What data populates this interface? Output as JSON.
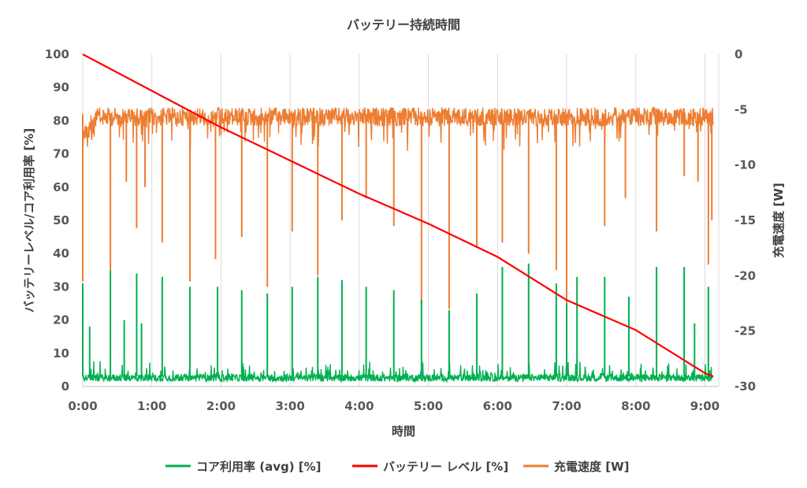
{
  "chart_data": {
    "type": "line",
    "title": "バッテリー持続時間",
    "xlabel": "時間",
    "ylabel_left": "バッテリーレベル/コア利用率 [%]",
    "ylabel_right": "充電速度 [W]",
    "x_ticks": [
      "0:00",
      "1:00",
      "2:00",
      "3:00",
      "4:00",
      "5:00",
      "6:00",
      "7:00",
      "8:00",
      "9:00"
    ],
    "x_range_hours": [
      0,
      9.2
    ],
    "y_left_range": [
      0,
      100
    ],
    "y_left_ticks": [
      0,
      10,
      20,
      30,
      40,
      50,
      60,
      70,
      80,
      90,
      100
    ],
    "y_right_range": [
      -30,
      0
    ],
    "y_right_ticks": [
      0,
      -5,
      -10,
      -15,
      -20,
      -25,
      -30
    ],
    "grid": "vertical",
    "legend_position": "bottom",
    "series": [
      {
        "name": "コア利用率 (avg) [%]",
        "axis": "left",
        "color": "#00b050",
        "baseline": 3,
        "spikes": [
          {
            "h": 0.0,
            "v": 31
          },
          {
            "h": 0.1,
            "v": 18
          },
          {
            "h": 0.4,
            "v": 35
          },
          {
            "h": 0.6,
            "v": 20
          },
          {
            "h": 0.78,
            "v": 34
          },
          {
            "h": 0.85,
            "v": 19
          },
          {
            "h": 1.15,
            "v": 33
          },
          {
            "h": 1.55,
            "v": 30
          },
          {
            "h": 1.95,
            "v": 30
          },
          {
            "h": 2.3,
            "v": 29
          },
          {
            "h": 2.67,
            "v": 28
          },
          {
            "h": 3.03,
            "v": 30
          },
          {
            "h": 3.4,
            "v": 33
          },
          {
            "h": 3.75,
            "v": 32
          },
          {
            "h": 4.1,
            "v": 30
          },
          {
            "h": 4.5,
            "v": 29
          },
          {
            "h": 4.9,
            "v": 26
          },
          {
            "h": 5.3,
            "v": 23
          },
          {
            "h": 5.7,
            "v": 28
          },
          {
            "h": 6.07,
            "v": 36
          },
          {
            "h": 6.45,
            "v": 37
          },
          {
            "h": 6.85,
            "v": 31
          },
          {
            "h": 7.0,
            "v": 25
          },
          {
            "h": 7.15,
            "v": 33
          },
          {
            "h": 7.55,
            "v": 33
          },
          {
            "h": 7.9,
            "v": 27
          },
          {
            "h": 8.3,
            "v": 36
          },
          {
            "h": 8.7,
            "v": 36
          },
          {
            "h": 8.85,
            "v": 19
          },
          {
            "h": 9.05,
            "v": 30
          }
        ]
      },
      {
        "name": "バッテリー レベル [%]",
        "axis": "left",
        "color": "#ff0000",
        "points": [
          {
            "h": 0.0,
            "v": 100
          },
          {
            "h": 1.0,
            "v": 89
          },
          {
            "h": 2.0,
            "v": 78
          },
          {
            "h": 3.0,
            "v": 68
          },
          {
            "h": 4.0,
            "v": 58
          },
          {
            "h": 5.0,
            "v": 49
          },
          {
            "h": 6.0,
            "v": 39
          },
          {
            "h": 7.0,
            "v": 26
          },
          {
            "h": 8.0,
            "v": 17
          },
          {
            "h": 9.0,
            "v": 4
          },
          {
            "h": 9.12,
            "v": 3
          }
        ]
      },
      {
        "name": "充電速度 [W]",
        "axis": "right",
        "color": "#ed7d31",
        "band_top": -4.8,
        "band_bottom": -6.5,
        "spikes": [
          {
            "h": 0.0,
            "v": -20.5
          },
          {
            "h": 0.4,
            "v": -19.5
          },
          {
            "h": 0.63,
            "v": -11.5
          },
          {
            "h": 0.78,
            "v": -15.7
          },
          {
            "h": 0.9,
            "v": -12
          },
          {
            "h": 1.15,
            "v": -17
          },
          {
            "h": 1.55,
            "v": -20.5
          },
          {
            "h": 1.92,
            "v": -18.5
          },
          {
            "h": 2.3,
            "v": -16.5
          },
          {
            "h": 2.67,
            "v": -21
          },
          {
            "h": 3.03,
            "v": -16
          },
          {
            "h": 3.4,
            "v": -20
          },
          {
            "h": 3.75,
            "v": -15
          },
          {
            "h": 4.1,
            "v": -13
          },
          {
            "h": 4.5,
            "v": -15.5
          },
          {
            "h": 4.9,
            "v": -22.5
          },
          {
            "h": 5.3,
            "v": -23
          },
          {
            "h": 5.7,
            "v": -17.5
          },
          {
            "h": 6.07,
            "v": -17
          },
          {
            "h": 6.45,
            "v": -18
          },
          {
            "h": 6.85,
            "v": -19.5
          },
          {
            "h": 7.0,
            "v": -25.5
          },
          {
            "h": 7.55,
            "v": -15.5
          },
          {
            "h": 7.85,
            "v": -13
          },
          {
            "h": 8.3,
            "v": -16
          },
          {
            "h": 8.7,
            "v": -11
          },
          {
            "h": 8.9,
            "v": -11.5
          },
          {
            "h": 9.05,
            "v": -19
          },
          {
            "h": 9.1,
            "v": -15
          }
        ]
      }
    ]
  }
}
